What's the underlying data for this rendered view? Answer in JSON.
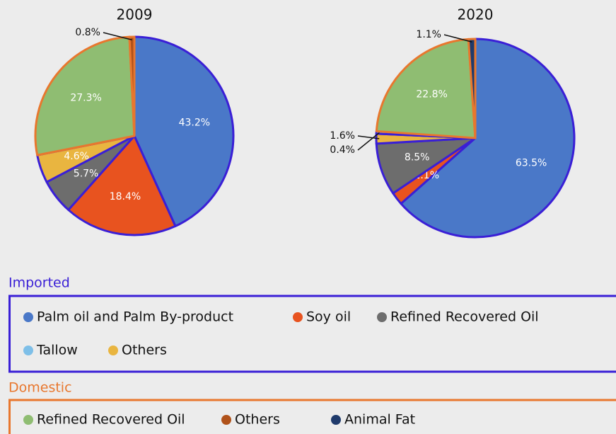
{
  "chart_data": [
    {
      "type": "pie",
      "title": "2009",
      "values": [
        43.2,
        18.4,
        5.7,
        4.6,
        27.3,
        0.8
      ],
      "value_labels": [
        "43.2%",
        "18.4%",
        "5.7%",
        "4.6%",
        "27.3%",
        "0.8%"
      ],
      "colors": [
        "#4a78c8",
        "#e8531f",
        "#6d6d6d",
        "#e9b540",
        "#8fbd72",
        "#b0521a"
      ],
      "edge_colors": [
        "#3a1fd6",
        "#3a1fd6",
        "#3a1fd6",
        "#3a1fd6",
        "#e8772e",
        "#e8772e"
      ]
    },
    {
      "type": "pie",
      "title": "2020",
      "values": [
        63.5,
        2.1,
        8.5,
        1.6,
        0.4,
        22.8,
        1.1
      ],
      "value_labels": [
        "63.5%",
        "2.1%",
        "8.5%",
        "1.6%",
        "0.4%",
        "22.8%",
        "1.1%"
      ],
      "colors": [
        "#4a78c8",
        "#e8531f",
        "#6d6d6d",
        "#e9b540",
        "#7ebfe8",
        "#8fbd72",
        "#1f3a6b"
      ],
      "edge_colors": [
        "#3a1fd6",
        "#3a1fd6",
        "#3a1fd6",
        "#3a1fd6",
        "#3a1fd6",
        "#e8772e",
        "#e8772e"
      ]
    }
  ],
  "legend": {
    "groups": [
      {
        "title": "Imported",
        "color": "#3a1fd6",
        "items": [
          {
            "name": "Palm oil and Palm By-product",
            "color": "#4a78c8"
          },
          {
            "name": "Soy oil",
            "color": "#e8531f"
          },
          {
            "name": "Refined Recovered Oil",
            "color": "#6d6d6d"
          },
          {
            "name": "Tallow",
            "color": "#7ebfe8"
          },
          {
            "name": "Others",
            "color": "#e9b540"
          }
        ]
      },
      {
        "title": "Domestic",
        "color": "#e8772e",
        "items": [
          {
            "name": "Refined Recovered Oil",
            "color": "#8fbd72"
          },
          {
            "name": "Others",
            "color": "#b0521a"
          },
          {
            "name": "Animal Fat",
            "color": "#1f3a6b"
          }
        ]
      }
    ]
  }
}
